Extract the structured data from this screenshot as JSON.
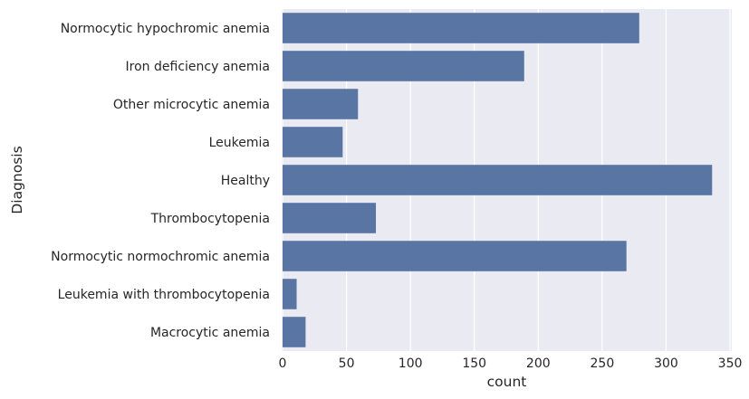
{
  "chart_data": {
    "type": "bar",
    "orientation": "horizontal",
    "categories": [
      "Normocytic hypochromic anemia",
      "Iron deficiency anemia",
      "Other microcytic anemia",
      "Leukemia",
      "Healthy",
      "Thrombocytopenia",
      "Normocytic normochromic anemia",
      "Leukemia with thrombocytopenia",
      "Macrocytic anemia"
    ],
    "values": [
      279,
      189,
      59,
      47,
      336,
      73,
      269,
      11,
      18
    ],
    "xlabel": "count",
    "ylabel": "Diagnosis",
    "xlim": [
      0,
      350
    ],
    "xticks": [
      0,
      50,
      100,
      150,
      200,
      250,
      300,
      350
    ],
    "grid": true,
    "colors": {
      "bar": "#5975a4",
      "background": "#eaeaf2",
      "grid": "#ffffff"
    }
  }
}
